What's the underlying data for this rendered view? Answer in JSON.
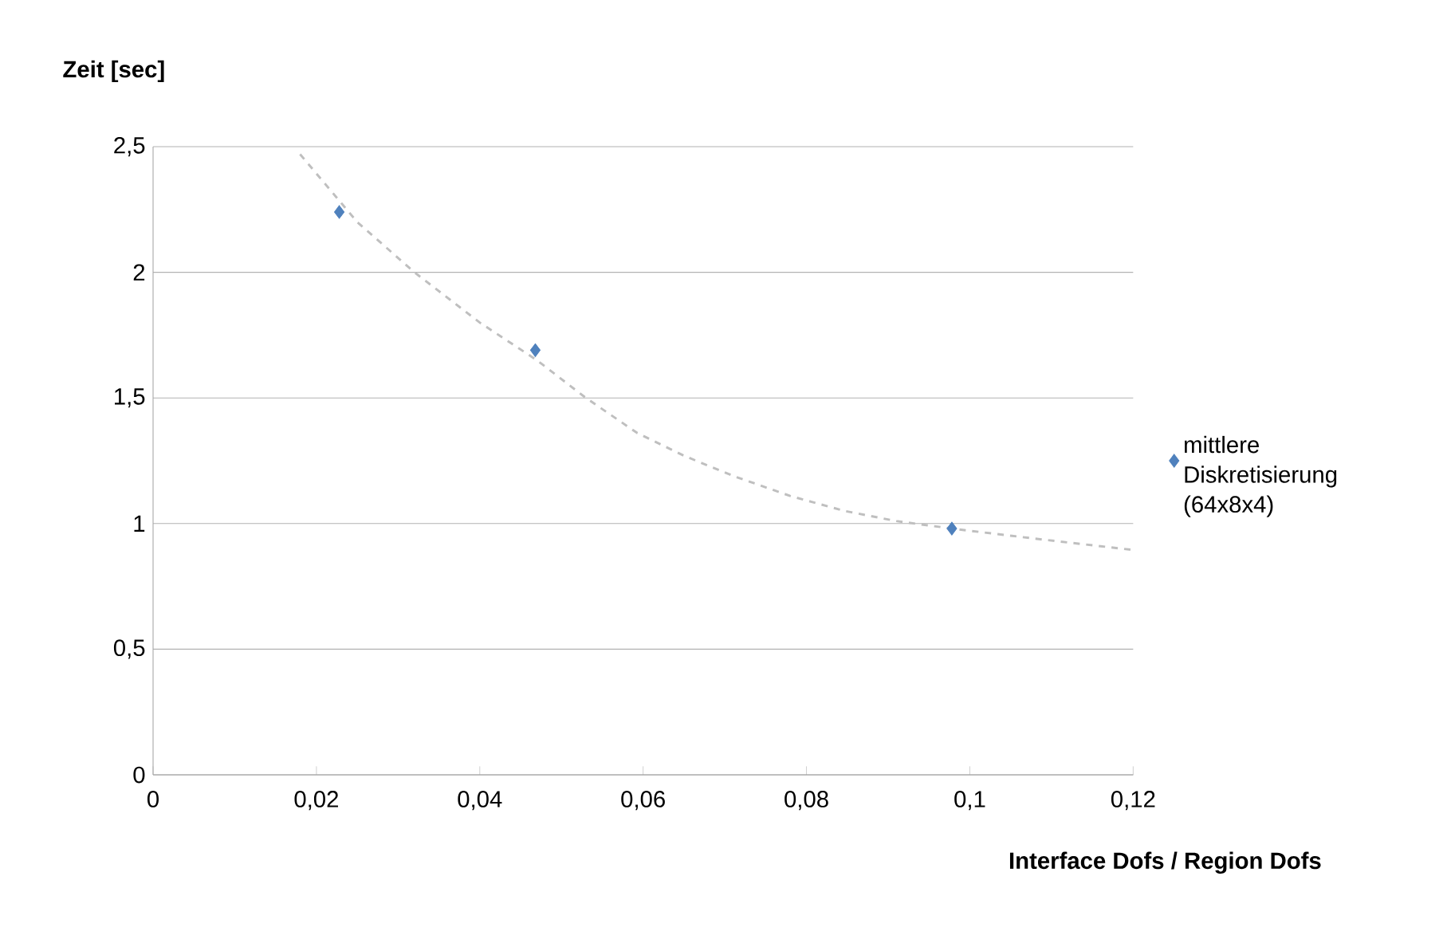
{
  "chart_data": {
    "type": "scatter",
    "xlabel": "Interface Dofs / Region Dofs",
    "ylabel": "Zeit [sec]",
    "xlim": [
      0,
      0.12
    ],
    "ylim": [
      0,
      2.5
    ],
    "xticks": [
      0,
      {
        "value": 0.02,
        "label": "0,02"
      },
      {
        "value": 0.04,
        "label": "0,04"
      },
      {
        "value": 0.06,
        "label": "0,06"
      },
      {
        "value": 0.08,
        "label": "0,08"
      },
      {
        "value": 0.1,
        "label": "0,1"
      },
      {
        "value": 0.12,
        "label": "0,12"
      }
    ],
    "yticks": [
      0,
      {
        "value": 0.5,
        "label": "0,5"
      },
      1,
      {
        "value": 1.5,
        "label": "1,5"
      },
      2,
      {
        "value": 2.5,
        "label": "2,5"
      }
    ],
    "grid": "y",
    "legend": "right",
    "marker": "diamond",
    "series": [
      {
        "name": "mittlere Diskretisierung (64x8x4)",
        "color": "#4f81bd",
        "x": [
          0.0228,
          0.0468,
          0.0978
        ],
        "values": [
          2.24,
          1.69,
          0.98
        ]
      },
      {
        "type": "line",
        "color": "#bfbfbf",
        "line_style": "dashed",
        "marker": "none",
        "x": [
          0.018,
          0.025,
          0.032,
          0.04,
          0.047,
          0.053,
          0.0593,
          0.065,
          0.071,
          0.078,
          0.0847,
          0.091,
          0.0978,
          0.108,
          0.12
        ],
        "values": [
          2.47,
          2.2,
          2.0,
          1.8,
          1.65,
          1.5,
          1.36,
          1.27,
          1.19,
          1.11,
          1.05,
          1.01,
          0.98,
          0.94,
          0.895
        ]
      }
    ]
  }
}
